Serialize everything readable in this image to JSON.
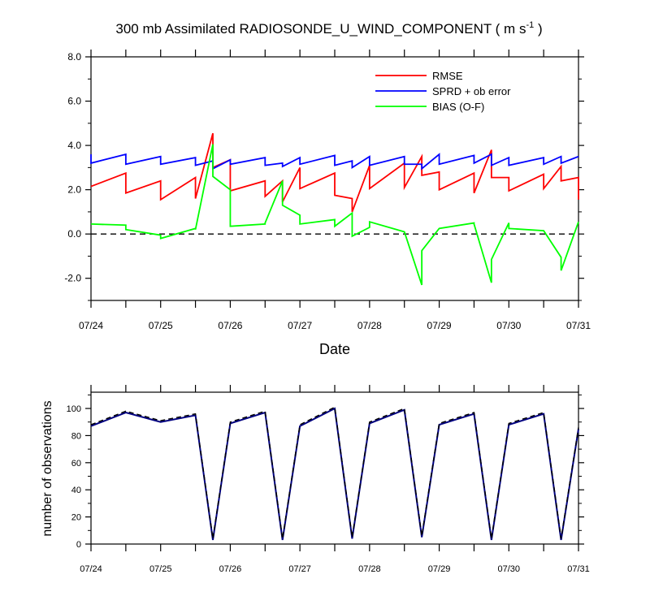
{
  "chart_data": [
    {
      "type": "line",
      "title": "300 mb Assimilated RADIOSONDE_U_WIND_COMPONENT ( m s",
      "title_units_sup": "-1",
      "title_close": " )",
      "xlabel": "Date",
      "ylabel": "",
      "x_tick_labels": [
        "07/24",
        "07/25",
        "07/26",
        "07/27",
        "07/28",
        "07/29",
        "07/30",
        "07/31"
      ],
      "xlim": [
        0,
        7
      ],
      "ylim": [
        -3,
        8
      ],
      "y_ticks": [
        -2,
        0,
        2,
        4,
        6,
        8
      ],
      "y_tick_labels": [
        "-2.0",
        "0.0",
        "2.0",
        "4.0",
        "6.0",
        "8.0"
      ],
      "zero_line": true,
      "legend_position": "top-right",
      "series": [
        {
          "name": "RMSE",
          "color": "#ff0000",
          "x": [
            0,
            0.5,
            0.5,
            1,
            1,
            1.5,
            1.5,
            1.75,
            1.75,
            2,
            2,
            2.5,
            2.5,
            2.75,
            2.75,
            3,
            3,
            3.5,
            3.5,
            3.75,
            3.75,
            4,
            4,
            4.5,
            4.5,
            4.75,
            4.75,
            5,
            5,
            5.5,
            5.5,
            5.75,
            5.75,
            6,
            6,
            6.5,
            6.5,
            6.75,
            6.75,
            7,
            7
          ],
          "y": [
            2.15,
            2.75,
            1.85,
            2.4,
            1.55,
            2.55,
            1.6,
            4.55,
            3.0,
            3.35,
            1.95,
            2.4,
            1.7,
            2.4,
            1.45,
            3.0,
            2.05,
            2.75,
            1.75,
            1.6,
            1.0,
            3.1,
            2.05,
            3.2,
            2.1,
            3.5,
            2.65,
            2.8,
            2.0,
            2.75,
            1.85,
            3.8,
            2.55,
            2.55,
            1.95,
            2.7,
            2.05,
            3.05,
            2.4,
            2.55,
            1.55
          ]
        },
        {
          "name": "SPRD + ob error",
          "color": "#0000ff",
          "x": [
            0,
            0,
            0.5,
            0.5,
            1,
            1,
            1.5,
            1.5,
            1.75,
            1.75,
            2,
            2,
            2.5,
            2.5,
            2.75,
            2.75,
            3,
            3,
            3.5,
            3.5,
            3.75,
            3.75,
            4,
            4,
            4.5,
            4.5,
            4.75,
            4.75,
            5,
            5,
            5.5,
            5.5,
            5.75,
            5.75,
            6,
            6,
            6.5,
            6.5,
            6.75,
            6.75,
            7
          ],
          "y": [
            3.6,
            3.2,
            3.6,
            3.15,
            3.5,
            3.15,
            3.45,
            3.1,
            3.3,
            2.95,
            3.35,
            3.15,
            3.45,
            3.1,
            3.2,
            3.05,
            3.45,
            3.15,
            3.55,
            3.1,
            3.3,
            3.0,
            3.5,
            3.1,
            3.5,
            3.15,
            3.15,
            2.95,
            3.6,
            3.15,
            3.55,
            3.2,
            3.6,
            3.1,
            3.45,
            3.1,
            3.45,
            3.15,
            3.5,
            3.2,
            3.5
          ]
        },
        {
          "name": "BIAS (O-F)",
          "color": "#00ff00",
          "x": [
            0,
            0.5,
            0.5,
            1,
            1,
            1.5,
            1.5,
            1.75,
            1.75,
            2,
            2,
            2.5,
            2.5,
            2.75,
            2.75,
            3,
            3,
            3.5,
            3.5,
            3.75,
            3.75,
            4,
            4,
            4.5,
            4.5,
            4.75,
            4.75,
            5,
            5,
            5.5,
            5.5,
            5.75,
            5.75,
            6,
            6,
            6.5,
            6.5,
            6.75,
            6.75,
            7
          ],
          "y": [
            0.45,
            0.4,
            0.2,
            -0.05,
            -0.2,
            0.25,
            0.2,
            4.05,
            2.6,
            2.0,
            0.35,
            0.45,
            0.5,
            2.4,
            1.3,
            0.85,
            0.45,
            0.65,
            0.35,
            0.95,
            -0.1,
            0.3,
            0.55,
            0.1,
            0.1,
            -2.3,
            -0.75,
            0.25,
            0.25,
            0.5,
            0.45,
            -2.2,
            -1.15,
            0.5,
            0.25,
            0.15,
            0.15,
            -1.05,
            -1.65,
            0.55
          ]
        }
      ]
    },
    {
      "type": "line",
      "title": "",
      "xlabel": "",
      "ylabel": "number of observations",
      "x_tick_labels": [
        "07/24",
        "07/25",
        "07/26",
        "07/27",
        "07/28",
        "07/29",
        "07/30",
        "07/31"
      ],
      "xlim": [
        0,
        7
      ],
      "ylim": [
        0,
        112
      ],
      "y_ticks": [
        0,
        20,
        40,
        60,
        80,
        100
      ],
      "y_tick_labels": [
        "0",
        "20",
        "40",
        "60",
        "80",
        "100"
      ],
      "series": [
        {
          "name": "number of observations",
          "color": "#000080",
          "x": [
            0,
            0.5,
            1,
            1.5,
            1.75,
            2,
            2.5,
            2.75,
            3,
            3.5,
            3.75,
            4,
            4.5,
            4.75,
            5,
            5.5,
            5.75,
            6,
            6.5,
            6.75,
            7
          ],
          "y": [
            87,
            97,
            90,
            95,
            3,
            89,
            97,
            3,
            87,
            100,
            4,
            89,
            99,
            5,
            88,
            96,
            3,
            88,
            96,
            3,
            85
          ]
        },
        {
          "name": "number of observations (dashed)",
          "color": "#000000",
          "x": [
            0,
            0.5,
            1,
            1.5,
            1.75,
            2,
            2.5,
            2.75,
            3,
            3.5,
            3.75,
            4,
            4.5,
            4.75,
            5,
            5.5,
            5.75,
            6,
            6.5,
            6.75,
            7
          ],
          "y": [
            88,
            98,
            91,
            96,
            4,
            90,
            98,
            4,
            88,
            101,
            5,
            90,
            100,
            6,
            89,
            97,
            4,
            89,
            97,
            4,
            86
          ]
        }
      ]
    }
  ]
}
